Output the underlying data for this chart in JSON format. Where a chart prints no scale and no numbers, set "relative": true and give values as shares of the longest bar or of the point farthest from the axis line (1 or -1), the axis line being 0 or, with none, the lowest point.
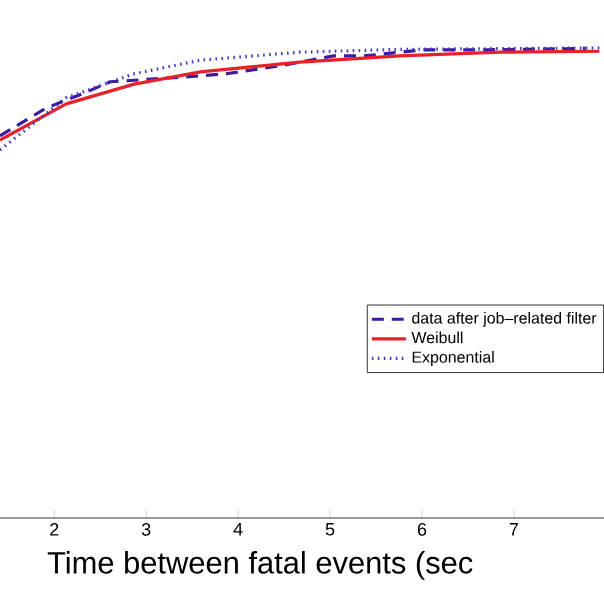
{
  "chart_data": {
    "type": "line",
    "relative": true,
    "xlabel": "Time between fatal events (sec",
    "xlim": [
      1.41,
      7.98
    ],
    "xticks": [
      2,
      3,
      4,
      5,
      6,
      7
    ],
    "legend": "right",
    "marker": "none",
    "grid": false,
    "series": [
      {
        "name": "data after job–related filter",
        "color": "#3d1a9e",
        "line_style": "dashed",
        "x": [
          1.41,
          1.91,
          2.35,
          2.61,
          2.93,
          3.54,
          3.87,
          4.46,
          5.04,
          5.37,
          6.02,
          6.7,
          7.78
        ],
        "values": [
          0.813,
          0.872,
          0.906,
          0.928,
          0.932,
          0.94,
          0.945,
          0.962,
          0.983,
          0.983,
          0.996,
          0.996,
          0.999
        ]
      },
      {
        "name": "Weibull",
        "color": "#e8202a",
        "line_style": "solid",
        "x": [
          1.41,
          2.13,
          2.87,
          3.59,
          4.67,
          5.76,
          6.85,
          7.93
        ],
        "values": [
          0.804,
          0.881,
          0.923,
          0.949,
          0.97,
          0.983,
          0.991,
          0.993
        ]
      },
      {
        "name": "Exponential",
        "color": "#3c3cc8",
        "line_style": "dotted",
        "x": [
          1.41,
          1.63,
          2.13,
          2.87,
          3.59,
          4.67,
          5.76,
          7.93
        ],
        "values": [
          0.783,
          0.817,
          0.894,
          0.945,
          0.974,
          0.991,
          0.997,
          1.0
        ]
      }
    ]
  }
}
